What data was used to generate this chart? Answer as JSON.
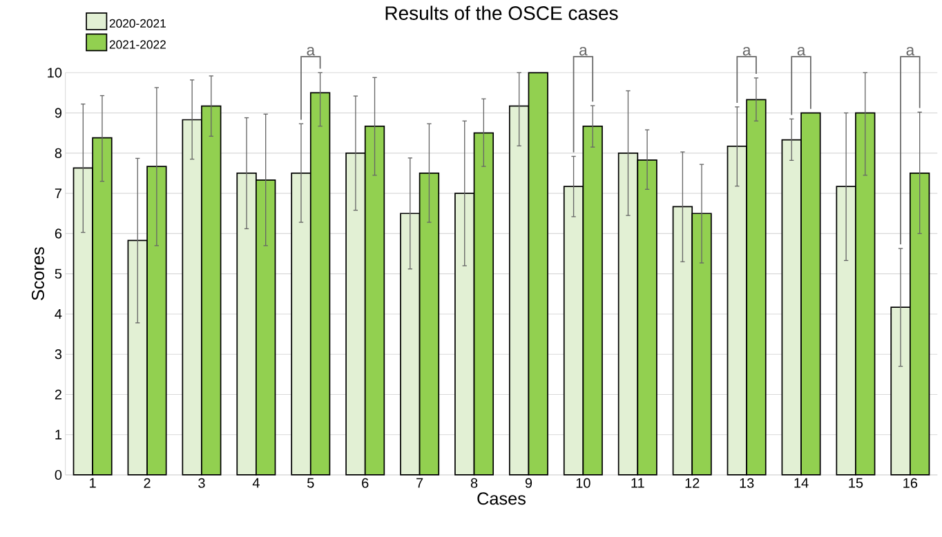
{
  "chart_data": {
    "type": "bar",
    "title": "Results of the OSCE cases",
    "xlabel": "Cases",
    "ylabel": "Scores",
    "categories": [
      "1",
      "2",
      "3",
      "4",
      "5",
      "6",
      "7",
      "8",
      "9",
      "10",
      "11",
      "12",
      "13",
      "14",
      "15",
      "16"
    ],
    "series": [
      {
        "name": "2020-2021",
        "color": "#e2f0d4",
        "values": [
          7.63,
          5.83,
          8.83,
          7.5,
          7.5,
          8.0,
          6.5,
          7.0,
          9.17,
          7.17,
          8.0,
          6.67,
          8.17,
          8.33,
          7.17,
          4.17
        ],
        "errors": [
          [
            6.03,
            9.22
          ],
          [
            3.78,
            7.87
          ],
          [
            7.85,
            9.82
          ],
          [
            6.12,
            8.88
          ],
          [
            6.28,
            8.73
          ],
          [
            6.58,
            9.42
          ],
          [
            5.12,
            7.88
          ],
          [
            5.2,
            8.8
          ],
          [
            8.18,
            10
          ],
          [
            6.42,
            7.92
          ],
          [
            6.45,
            9.55
          ],
          [
            5.3,
            8.03
          ],
          [
            7.18,
            9.15
          ],
          [
            7.82,
            8.85
          ],
          [
            5.33,
            9.0
          ],
          [
            2.7,
            5.63
          ]
        ]
      },
      {
        "name": "2021-2022",
        "color": "#92d050",
        "values": [
          8.38,
          7.67,
          9.17,
          7.33,
          9.5,
          8.67,
          7.5,
          8.5,
          10,
          8.67,
          7.83,
          6.5,
          9.33,
          9.0,
          9.0,
          7.5
        ],
        "errors": [
          [
            7.3,
            9.43
          ],
          [
            5.7,
            9.63
          ],
          [
            8.42,
            9.92
          ],
          [
            5.7,
            8.97
          ],
          [
            8.67,
            10
          ],
          [
            7.45,
            9.88
          ],
          [
            6.28,
            8.73
          ],
          [
            7.67,
            9.35
          ],
          null,
          [
            8.15,
            9.18
          ],
          [
            7.1,
            8.58
          ],
          [
            5.27,
            7.72
          ],
          [
            8.8,
            9.87
          ],
          null,
          [
            7.45,
            10
          ],
          [
            6.0,
            9.02
          ]
        ]
      }
    ],
    "ylim": [
      0,
      10
    ],
    "yticks": [
      0,
      1,
      2,
      3,
      4,
      5,
      6,
      7,
      8,
      9,
      10
    ],
    "grid": "y",
    "legend": "top left",
    "annotations": [
      "a",
      "a",
      "a",
      "a",
      "a"
    ]
  }
}
